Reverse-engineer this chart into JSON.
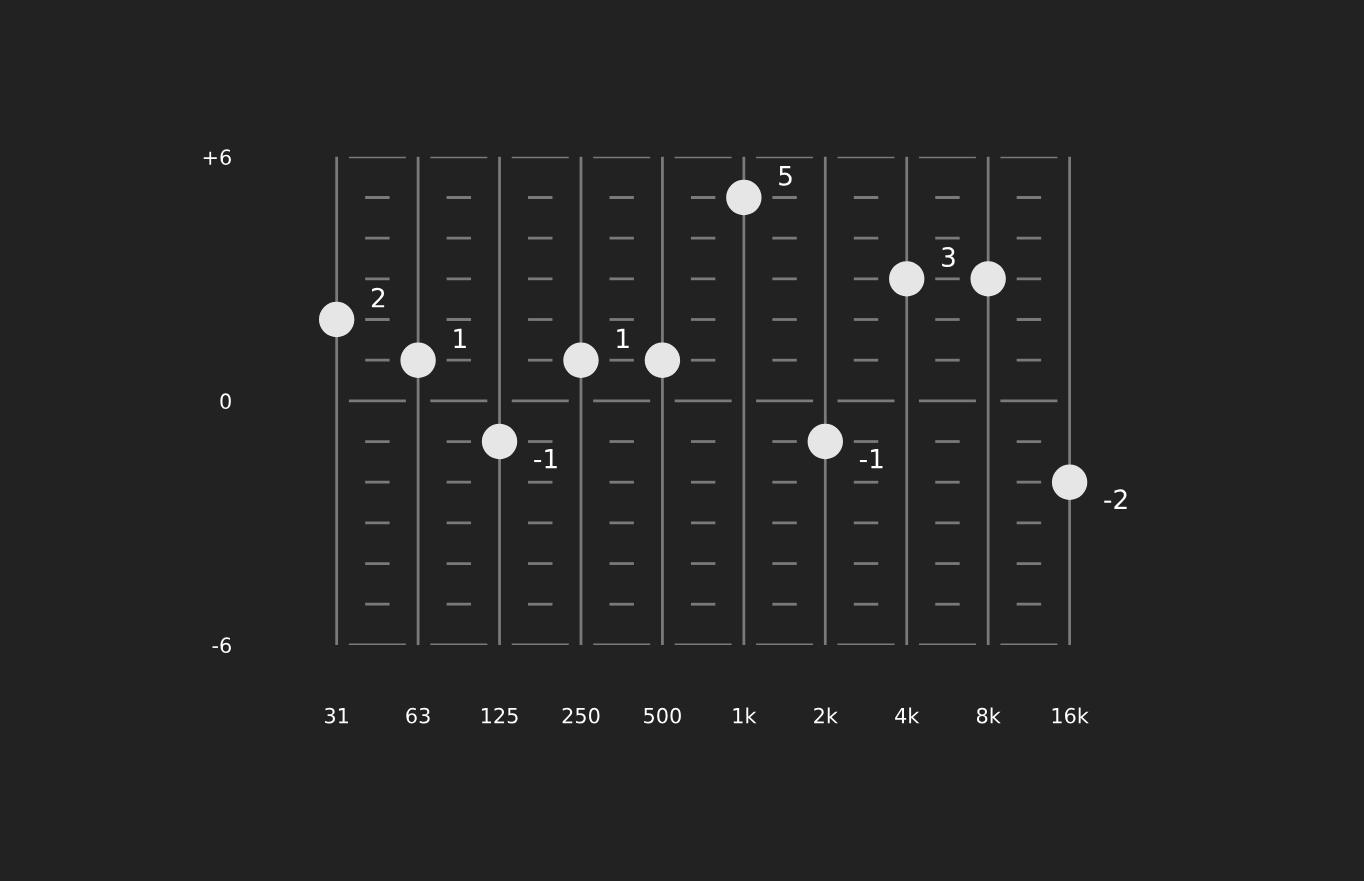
{
  "chart_data": {
    "type": "scatter",
    "categories": [
      "31",
      "63",
      "125",
      "250",
      "500",
      "1k",
      "2k",
      "4k",
      "8k",
      "16k"
    ],
    "series": [
      {
        "color": "#e6e6e6",
        "values": [
          2,
          1,
          -1,
          1,
          1,
          5,
          -1,
          3,
          3,
          -2
        ],
        "value_labels": [
          "2",
          "1",
          "-1",
          "1",
          null,
          "5",
          "-1",
          "3",
          null,
          "-2"
        ]
      }
    ],
    "ylim": [
      -6,
      6
    ],
    "yticks": [
      -6,
      0,
      {
        "value": 6,
        "label": "+6"
      }
    ],
    "grid": "x",
    "marker": "circle",
    "legend": false
  }
}
